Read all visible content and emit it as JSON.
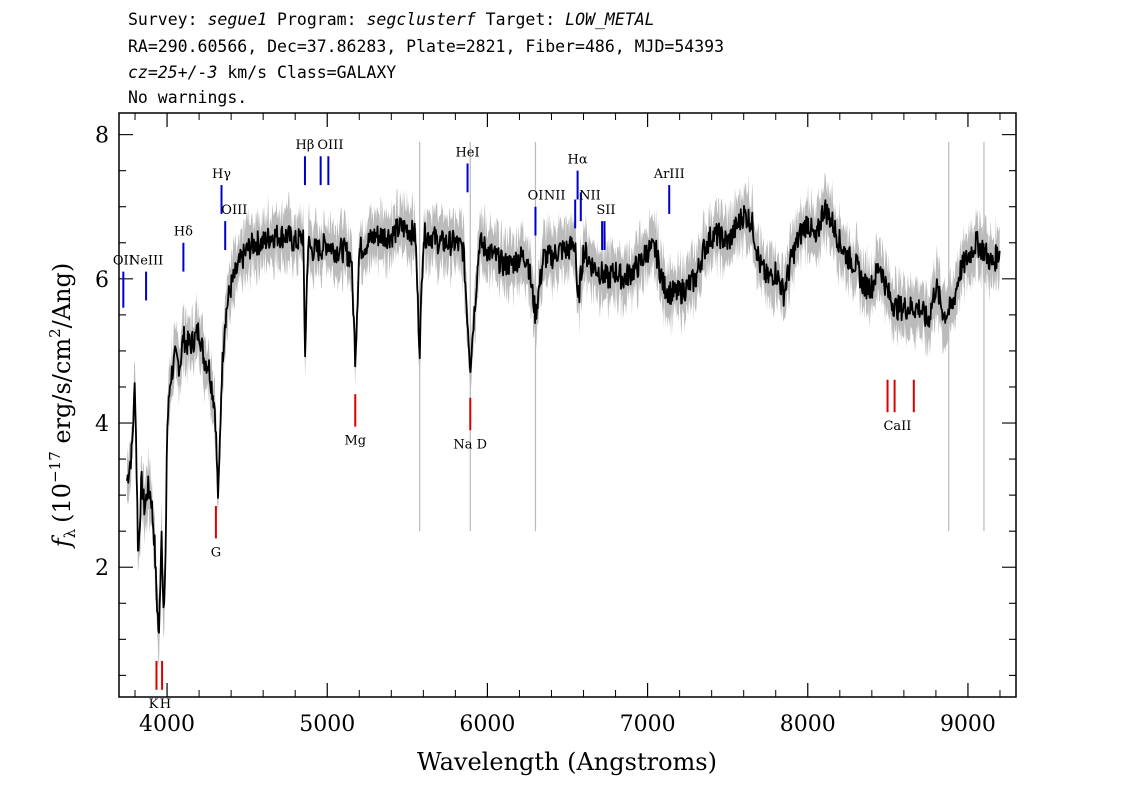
{
  "header": {
    "line1": {
      "survey_label": "Survey:",
      "survey": "segue1",
      "program_label": "Program:",
      "program": "segclusterf",
      "target_label": "Target:",
      "target": "LOW_METAL"
    },
    "line2": "RA=290.60566, Dec=37.86283, Plate=2821, Fiber=486, MJD=54393",
    "line3": {
      "cz": "cz=25+/-3",
      "rest": "km/s Class=GALAXY"
    },
    "line4": "No warnings."
  },
  "chart_data": {
    "type": "line",
    "xlabel": "Wavelength (Angstroms)",
    "ylabel": "f_λ (10^-17 erg/s/cm^2/Ang)",
    "ylabel_parts": {
      "f": "f",
      "lambda": "λ",
      "open": "(10",
      "exp": "−17",
      "mid": " erg/s/cm",
      "sq": "2",
      "close": "/Ang)"
    },
    "xlim": [
      3700,
      9300
    ],
    "ylim": [
      0.2,
      8.3
    ],
    "x_ticks": [
      4000,
      5000,
      6000,
      7000,
      8000,
      9000
    ],
    "x_tick_labels": [
      "4000",
      "5000",
      "6000",
      "7000",
      "8000",
      "9000"
    ],
    "y_ticks": [
      2,
      4,
      6,
      8
    ],
    "y_tick_labels": [
      "2",
      "4",
      "6",
      "8"
    ],
    "colors": {
      "spectrum": "#000000",
      "error": "#bbbbbb",
      "emission": "#0000cc",
      "absorption": "#dd0000"
    },
    "spectrum": {
      "x": [
        3750,
        3780,
        3800,
        3820,
        3840,
        3860,
        3880,
        3900,
        3920,
        3935,
        3950,
        3965,
        3980,
        3990,
        4000,
        4020,
        4050,
        4080,
        4102,
        4120,
        4150,
        4180,
        4200,
        4230,
        4260,
        4280,
        4300,
        4310,
        4320,
        4340,
        4360,
        4380,
        4400,
        4450,
        4500,
        4550,
        4600,
        4650,
        4700,
        4750,
        4800,
        4850,
        4861,
        4880,
        4900,
        4950,
        5000,
        5050,
        5100,
        5150,
        5175,
        5200,
        5250,
        5300,
        5350,
        5400,
        5450,
        5500,
        5550,
        5577,
        5600,
        5650,
        5700,
        5750,
        5800,
        5850,
        5893,
        5950,
        6000,
        6050,
        6100,
        6150,
        6200,
        6250,
        6300,
        6350,
        6400,
        6450,
        6500,
        6550,
        6563,
        6600,
        6650,
        6700,
        6750,
        6800,
        6850,
        6900,
        6950,
        7000,
        7050,
        7100,
        7150,
        7200,
        7250,
        7300,
        7350,
        7400,
        7450,
        7500,
        7550,
        7600,
        7650,
        7700,
        7750,
        7800,
        7850,
        7900,
        7950,
        8000,
        8050,
        8100,
        8150,
        8200,
        8250,
        8300,
        8350,
        8400,
        8450,
        8500,
        8550,
        8600,
        8650,
        8700,
        8750,
        8800,
        8850,
        8900,
        8950,
        9000,
        9050,
        9100,
        9150,
        9200
      ],
      "y": [
        3.2,
        3.6,
        4.6,
        2.1,
        3.2,
        2.8,
        3.1,
        3.0,
        2.4,
        1.6,
        1.0,
        2.6,
        1.3,
        2.0,
        3.9,
        4.6,
        4.9,
        4.8,
        5.2,
        5.1,
        5.1,
        5.2,
        5.3,
        4.9,
        4.8,
        4.5,
        4.2,
        3.5,
        2.9,
        4.6,
        5.4,
        5.7,
        5.9,
        6.2,
        6.4,
        6.5,
        6.5,
        6.6,
        6.6,
        6.6,
        6.5,
        6.6,
        4.9,
        6.5,
        6.4,
        6.4,
        6.5,
        6.4,
        6.4,
        6.3,
        4.9,
        6.4,
        6.5,
        6.6,
        6.6,
        6.6,
        6.7,
        6.7,
        6.6,
        5.0,
        6.6,
        6.6,
        6.5,
        6.5,
        6.5,
        6.4,
        4.8,
        6.5,
        6.4,
        6.3,
        6.2,
        6.2,
        6.3,
        6.3,
        5.5,
        6.3,
        6.3,
        6.4,
        6.4,
        6.5,
        5.6,
        6.4,
        6.2,
        6.1,
        6.0,
        6.1,
        6.0,
        6.1,
        6.2,
        6.4,
        6.4,
        5.9,
        5.8,
        5.8,
        5.9,
        6.0,
        6.4,
        6.6,
        6.6,
        6.5,
        6.7,
        6.9,
        6.8,
        6.2,
        6.0,
        6.1,
        5.8,
        6.3,
        6.6,
        6.8,
        6.5,
        7.0,
        6.8,
        6.5,
        6.3,
        6.2,
        5.9,
        5.9,
        6.2,
        5.8,
        5.6,
        5.6,
        5.6,
        5.6,
        5.4,
        5.9,
        5.5,
        5.6,
        6.1,
        6.3,
        6.5,
        6.4,
        6.2,
        6.4
      ],
      "error": 0.35
    },
    "emission_lines": [
      {
        "name": "OII",
        "x": 3727,
        "y0": 5.6,
        "y1": 6.1
      },
      {
        "name": "NeIII",
        "x": 3869,
        "y0": 5.7,
        "y1": 6.1
      },
      {
        "name": "Hδ",
        "x": 4102,
        "y0": 6.1,
        "y1": 6.5
      },
      {
        "name": "Hγ",
        "x": 4340,
        "y0": 6.9,
        "y1": 7.3
      },
      {
        "name": "OIII",
        "x": 4363,
        "y0": 6.4,
        "y1": 6.8
      },
      {
        "name": "Hβ",
        "x": 4861,
        "y0": 7.3,
        "y1": 7.7
      },
      {
        "name": "OIII",
        "x": 4959,
        "y0": 7.3,
        "y1": 7.7
      },
      {
        "name": "OIII",
        "x": 5007,
        "y0": 7.3,
        "y1": 7.7
      },
      {
        "name": "HeI",
        "x": 5876,
        "y0": 7.2,
        "y1": 7.6
      },
      {
        "name": "OI",
        "x": 6300,
        "y0": 6.6,
        "y1": 7.0
      },
      {
        "name": "NII",
        "x": 6548,
        "y0": 6.7,
        "y1": 7.1
      },
      {
        "name": "Hα",
        "x": 6563,
        "y0": 7.1,
        "y1": 7.5
      },
      {
        "name": "NII",
        "x": 6583,
        "y0": 6.8,
        "y1": 7.2
      },
      {
        "name": "SII",
        "x": 6716,
        "y0": 6.4,
        "y1": 6.8
      },
      {
        "name": "SII",
        "x": 6731,
        "y0": 6.4,
        "y1": 6.8
      },
      {
        "name": "ArIII",
        "x": 7135,
        "y0": 6.9,
        "y1": 7.3
      }
    ],
    "emission_labels": [
      {
        "text": "OII",
        "x": 3727,
        "y": 6.2
      },
      {
        "text": "NeIII",
        "x": 3869,
        "y": 6.2
      },
      {
        "text": "Hδ",
        "x": 4102,
        "y": 6.6
      },
      {
        "text": "Hγ",
        "x": 4340,
        "y": 7.4
      },
      {
        "text": "OIII",
        "x": 4420,
        "y": 6.9
      },
      {
        "text": "Hβ",
        "x": 4861,
        "y": 7.8
      },
      {
        "text": "OIII",
        "x": 5020,
        "y": 7.8
      },
      {
        "text": "HeI",
        "x": 5876,
        "y": 7.7
      },
      {
        "text": "OI",
        "x": 6300,
        "y": 7.1
      },
      {
        "text": "NII",
        "x": 6420,
        "y": 7.1
      },
      {
        "text": "Hα",
        "x": 6563,
        "y": 7.6
      },
      {
        "text": "NII",
        "x": 6640,
        "y": 7.1
      },
      {
        "text": "SII",
        "x": 6740,
        "y": 6.9
      },
      {
        "text": "ArIII",
        "x": 7135,
        "y": 7.4
      }
    ],
    "absorption_lines": [
      {
        "name": "K",
        "x": 3934,
        "y0": 0.3,
        "y1": 0.7
      },
      {
        "name": "H",
        "x": 3969,
        "y0": 0.3,
        "y1": 0.7
      },
      {
        "name": "G",
        "x": 4305,
        "y0": 2.4,
        "y1": 2.85
      },
      {
        "name": "Mg",
        "x": 5175,
        "y0": 3.95,
        "y1": 4.4
      },
      {
        "name": "Na D",
        "x": 5893,
        "y0": 3.9,
        "y1": 4.35
      },
      {
        "name": "CaII",
        "x": 8498,
        "y0": 4.15,
        "y1": 4.6
      },
      {
        "name": "CaII",
        "x": 8542,
        "y0": 4.15,
        "y1": 4.6
      },
      {
        "name": "CaII",
        "x": 8662,
        "y0": 4.15,
        "y1": 4.6
      }
    ],
    "absorption_labels": [
      {
        "text": "K",
        "x": 3915,
        "y": 0.05
      },
      {
        "text": "H",
        "x": 3990,
        "y": 0.05
      },
      {
        "text": "G",
        "x": 4305,
        "y": 2.15
      },
      {
        "text": "Mg",
        "x": 5175,
        "y": 3.7
      },
      {
        "text": "Na D",
        "x": 5893,
        "y": 3.65
      },
      {
        "text": "CaII",
        "x": 8560,
        "y": 3.9
      }
    ]
  }
}
